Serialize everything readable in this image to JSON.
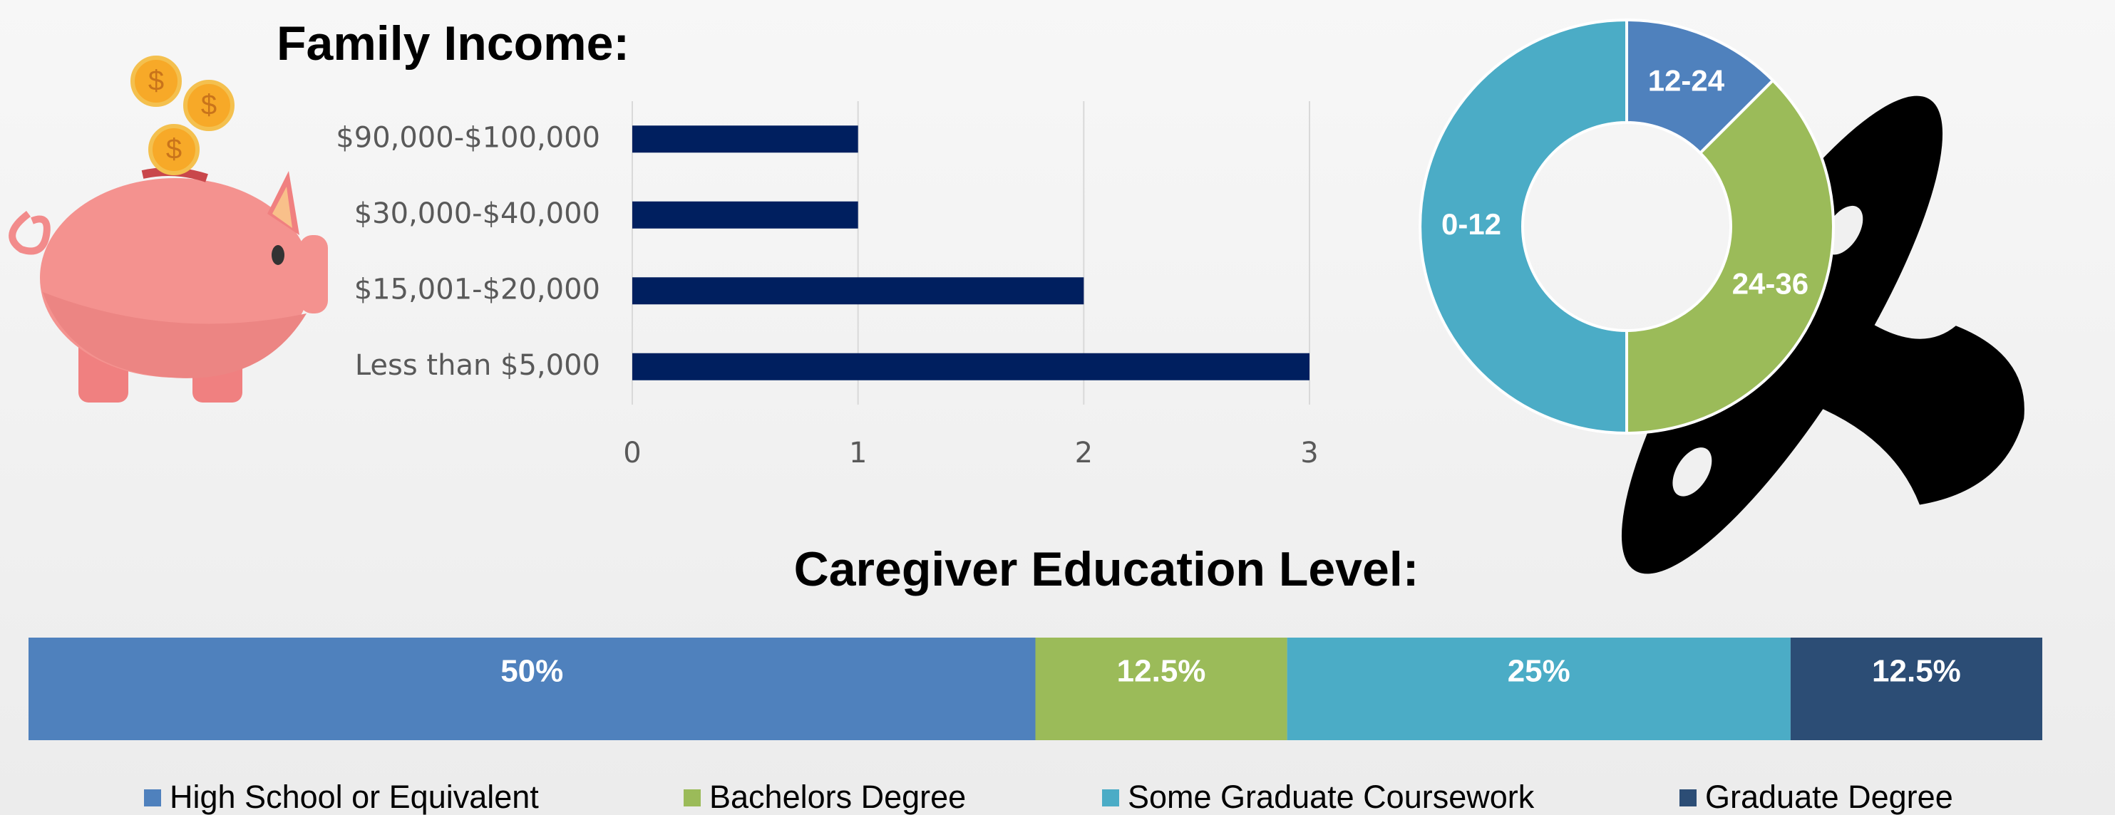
{
  "chart_data": [
    {
      "type": "bar",
      "title": "Family Income:",
      "categories": [
        "$90,000-$100,000",
        "$30,000-$40,000",
        "$15,001-$20,000",
        "Less than $5,000"
      ],
      "values": [
        1,
        1,
        2,
        3
      ],
      "color": "#001f5f",
      "xlim": [
        0,
        3
      ],
      "xticks": [
        0,
        1,
        2,
        3
      ],
      "grid": true
    },
    {
      "type": "donut",
      "categories": [
        "12-24",
        "24-36",
        "0-12"
      ],
      "values": [
        12.5,
        37.5,
        50
      ],
      "colors": [
        "#4f81bd",
        "#9bbb59",
        "#4bacc6"
      ]
    },
    {
      "type": "stacked_bar",
      "title": "Caregiver Education Level:",
      "xlim": [
        0,
        100
      ],
      "series": [
        {
          "name": "High School or Equivalent",
          "color": "#4f81bd",
          "values": [
            50
          ],
          "value_labels": [
            "50%"
          ]
        },
        {
          "name": "Bachelors Degree",
          "color": "#9bbb59",
          "values": [
            12.5
          ],
          "value_labels": [
            "12.5%"
          ]
        },
        {
          "name": "Some Graduate Coursework",
          "color": "#4bacc6",
          "values": [
            25
          ],
          "value_labels": [
            "25%"
          ]
        },
        {
          "name": "Graduate Degree",
          "color": "#2c4d75",
          "values": [
            12.5
          ],
          "value_labels": [
            "12.5%"
          ]
        }
      ],
      "legend": "bottom"
    }
  ]
}
